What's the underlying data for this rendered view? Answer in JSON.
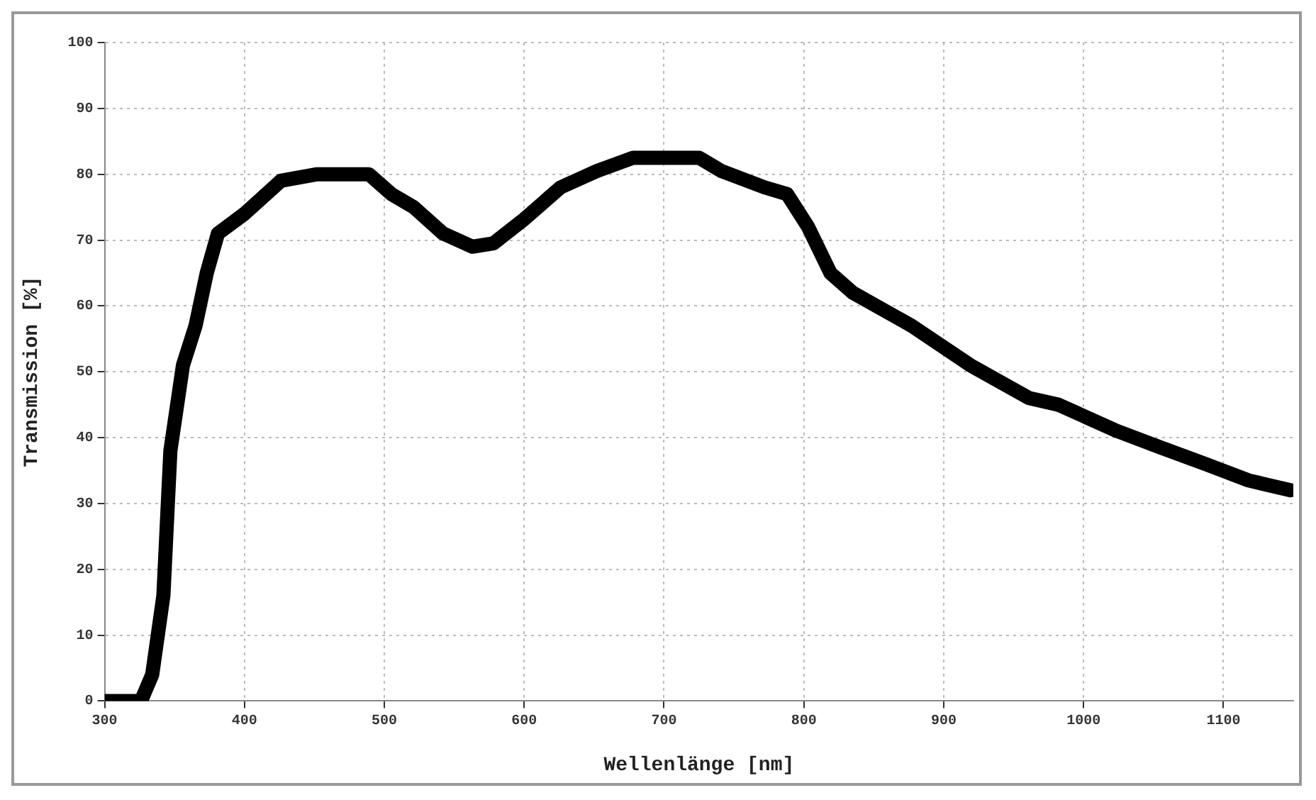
{
  "chart_data": {
    "type": "line",
    "xlabel": "Wellenlänge [nm]",
    "ylabel": "Transmission [%]",
    "xlim": [
      300,
      1150
    ],
    "xticks": [
      300,
      400,
      500,
      600,
      700,
      800,
      900,
      1000,
      1100
    ],
    "ylim": [
      0,
      100
    ],
    "yticks": [
      0,
      10,
      20,
      30,
      40,
      50,
      60,
      70,
      80,
      90,
      100
    ],
    "grid": true,
    "marker": "none",
    "line_style": "solid",
    "series": [
      {
        "color": "#000000",
        "x": [
          300,
          326,
          334,
          342,
          347,
          356,
          365,
          373,
          381,
          400,
          426,
          452,
          489,
          505,
          521,
          542,
          563,
          578,
          599,
          626,
          652,
          678,
          725,
          741,
          772,
          788,
          803,
          819,
          835,
          877,
          919,
          961,
          982,
          1024,
          1055,
          1087,
          1118,
          1148
        ],
        "values": [
          0,
          0,
          4,
          16,
          38,
          51,
          57,
          65,
          71,
          74,
          79,
          80,
          80,
          77,
          75,
          71,
          69,
          69.5,
          73,
          78,
          80.5,
          82.5,
          82.5,
          80.5,
          78,
          77,
          72,
          65,
          62,
          57,
          51,
          46,
          45,
          41,
          38.5,
          36,
          33.5,
          32
        ]
      }
    ]
  }
}
